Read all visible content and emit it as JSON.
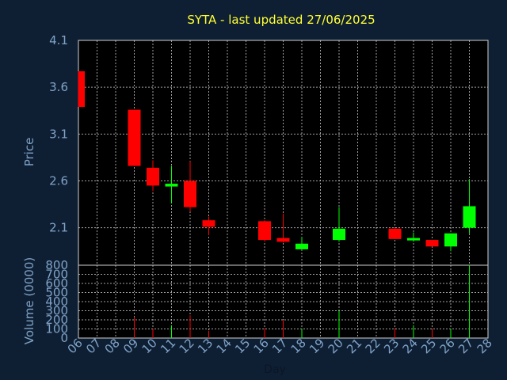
{
  "chart_data": [
    {
      "type": "candlestick",
      "title": "SYTA - last updated 27/06/2025",
      "ylabel": "Price",
      "ylim": [
        1.7,
        4.1
      ],
      "yticks": [
        4.1,
        3.6,
        3.1,
        2.6,
        2.1
      ],
      "ytick_labels": [
        "4.1",
        "3.6",
        "3.1",
        "2.6",
        "2.1"
      ],
      "grid": true,
      "colors": {
        "up": "#00ff00",
        "down": "#ff0000",
        "grid": "#c8c8c8"
      },
      "candles": [
        {
          "day": "06",
          "open": 3.77,
          "high": 3.77,
          "low": 3.39,
          "close": 3.39
        },
        {
          "day": "09",
          "open": 3.36,
          "high": 3.36,
          "low": 2.76,
          "close": 2.76
        },
        {
          "day": "10",
          "open": 2.74,
          "high": 2.82,
          "low": 2.49,
          "close": 2.55
        },
        {
          "day": "11",
          "open": 2.54,
          "high": 2.76,
          "low": 2.36,
          "close": 2.57
        },
        {
          "day": "12",
          "open": 2.6,
          "high": 2.81,
          "low": 2.27,
          "close": 2.32
        },
        {
          "day": "13",
          "open": 2.18,
          "high": 2.22,
          "low": 2.02,
          "close": 2.11
        },
        {
          "day": "16",
          "open": 2.17,
          "high": 2.18,
          "low": 1.95,
          "close": 1.97
        },
        {
          "day": "17",
          "open": 1.99,
          "high": 2.25,
          "low": 1.94,
          "close": 1.95
        },
        {
          "day": "18",
          "open": 1.87,
          "high": 2.0,
          "low": 1.87,
          "close": 1.93
        },
        {
          "day": "20",
          "open": 1.97,
          "high": 2.32,
          "low": 1.95,
          "close": 2.09
        },
        {
          "day": "23",
          "open": 2.09,
          "high": 2.1,
          "low": 1.98,
          "close": 1.98
        },
        {
          "day": "24",
          "open": 1.98,
          "high": 2.05,
          "low": 1.95,
          "close": 1.99
        },
        {
          "day": "25",
          "open": 1.97,
          "high": 1.97,
          "low": 1.9,
          "close": 1.9
        },
        {
          "day": "26",
          "open": 1.9,
          "high": 2.04,
          "low": 1.85,
          "close": 2.04
        },
        {
          "day": "27",
          "open": 2.1,
          "high": 2.62,
          "low": 2.04,
          "close": 2.33
        }
      ]
    },
    {
      "type": "bar",
      "ylabel": "Volume (0000)",
      "xlabel": "Day",
      "ylim": [
        0,
        800
      ],
      "yticks": [
        0,
        100,
        200,
        300,
        400,
        500,
        600,
        700,
        800
      ],
      "ytick_labels": [
        "0",
        "100",
        "200",
        "300",
        "400",
        "500",
        "600",
        "700",
        "800"
      ],
      "categories": [
        "06",
        "07",
        "08",
        "09",
        "10",
        "11",
        "12",
        "13",
        "14",
        "15",
        "16",
        "17",
        "18",
        "19",
        "20",
        "21",
        "22",
        "23",
        "24",
        "25",
        "26",
        "27",
        "28"
      ],
      "volumes": [
        {
          "day": "06",
          "value": 0,
          "dir": "down"
        },
        {
          "day": "09",
          "value": 230,
          "dir": "down"
        },
        {
          "day": "10",
          "value": 100,
          "dir": "down"
        },
        {
          "day": "11",
          "value": 140,
          "dir": "up"
        },
        {
          "day": "12",
          "value": 250,
          "dir": "down"
        },
        {
          "day": "13",
          "value": 80,
          "dir": "down"
        },
        {
          "day": "16",
          "value": 110,
          "dir": "down"
        },
        {
          "day": "17",
          "value": 200,
          "dir": "down"
        },
        {
          "day": "18",
          "value": 100,
          "dir": "up"
        },
        {
          "day": "20",
          "value": 300,
          "dir": "up"
        },
        {
          "day": "23",
          "value": 110,
          "dir": "down"
        },
        {
          "day": "24",
          "value": 140,
          "dir": "up"
        },
        {
          "day": "25",
          "value": 100,
          "dir": "down"
        },
        {
          "day": "26",
          "value": 100,
          "dir": "up"
        },
        {
          "day": "27",
          "value": 800,
          "dir": "up"
        }
      ]
    }
  ]
}
